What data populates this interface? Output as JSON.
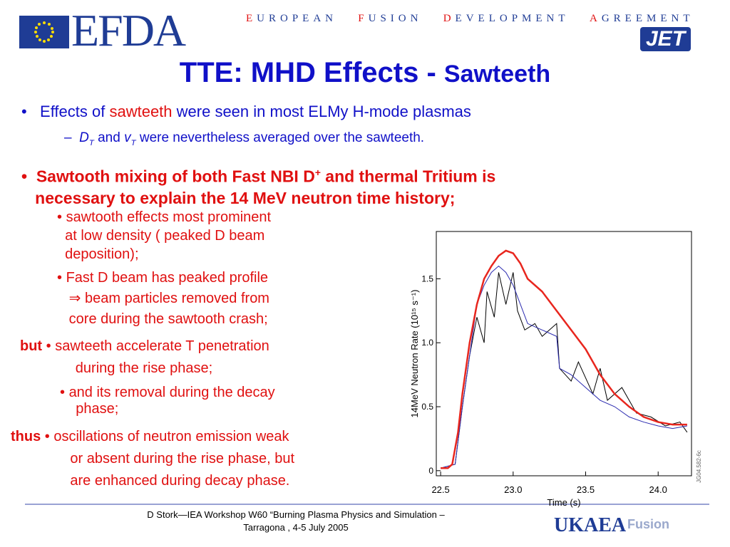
{
  "header": {
    "logo": "EFDA",
    "tagline": [
      "E",
      "UROPEAN",
      "F",
      "USION",
      "D",
      "EVELOPMENT",
      "A",
      "GREEMENT"
    ],
    "jet": "JET"
  },
  "title": {
    "main": "TTE: MHD Effects - ",
    "sub": "Sawteeth"
  },
  "bullets": {
    "b1": [
      "Effects of ",
      "sawteeth",
      " were seen in most ELMy H-mode plasmas"
    ],
    "b1sub": [
      "D",
      "T",
      " and ",
      "v",
      "T",
      " were nevertheless averaged over the sawteeth."
    ],
    "b2": [
      "Sawtooth mixing of both  Fast NBI D",
      "+",
      " and thermal Tritium is",
      "necessary to explain the 14 MeV neutron time history;"
    ],
    "s1": [
      "sawtooth effects most prominent",
      "at low density  ( peaked D beam",
      "deposition);"
    ],
    "s2": [
      "Fast D beam has peaked profile",
      "⇒ beam particles removed from",
      "core during the sawtooth crash;"
    ],
    "but": "but",
    "s3": [
      "sawteeth accelerate T penetration",
      "during the rise phase;"
    ],
    "s4": [
      "and its removal during the decay",
      "phase;"
    ],
    "thus": "thus",
    "s5": [
      "oscillations of neutron emission weak",
      "or absent during the rise phase, but",
      "are enhanced  during decay phase."
    ]
  },
  "figure": {
    "xlabel": "Time (s)",
    "ylabel": "14MeV Neutron Rate (10¹⁵ s⁻¹)",
    "side_label": "JG04.582-6c",
    "xlim": [
      22.47,
      24.23
    ],
    "ylim": [
      -0.04,
      1.87
    ],
    "xticks": [
      22.5,
      {
        "value": 23,
        "label": "23.0"
      },
      23.5,
      {
        "value": 24,
        "label": "24.0"
      }
    ],
    "yticks": [
      0,
      0.5,
      {
        "value": 1,
        "label": "1.0"
      },
      1.5
    ],
    "series": [
      {
        "color": "#000000",
        "x": [
          22.5,
          22.6,
          22.65,
          22.7,
          22.75,
          22.8,
          22.82,
          22.87,
          22.9,
          22.95,
          23.0,
          23.03,
          23.08,
          23.15,
          23.2,
          23.3,
          23.32,
          23.4,
          23.45,
          23.55,
          23.6,
          23.65,
          23.75,
          23.85,
          23.95,
          24.05,
          24.15,
          24.2
        ],
        "values": [
          0.02,
          0.05,
          0.5,
          0.9,
          1.2,
          1.0,
          1.4,
          1.2,
          1.55,
          1.3,
          1.55,
          1.25,
          1.1,
          1.15,
          1.05,
          1.15,
          0.8,
          0.7,
          0.85,
          0.6,
          0.8,
          0.55,
          0.65,
          0.45,
          0.42,
          0.35,
          0.38,
          0.3
        ]
      },
      {
        "color": "#2b2bb0",
        "x": [
          22.5,
          22.6,
          22.65,
          22.7,
          22.75,
          22.8,
          22.85,
          22.9,
          22.95,
          23.0,
          23.05,
          23.1,
          23.2,
          23.3,
          23.32,
          23.4,
          23.5,
          23.6,
          23.7,
          23.8,
          23.9,
          24.0,
          24.1,
          24.2
        ],
        "values": [
          0.02,
          0.05,
          0.5,
          0.9,
          1.3,
          1.45,
          1.55,
          1.6,
          1.55,
          1.45,
          1.3,
          1.15,
          1.1,
          1.05,
          0.8,
          0.75,
          0.65,
          0.55,
          0.5,
          0.42,
          0.38,
          0.35,
          0.33,
          0.35
        ]
      },
      {
        "color": "#e8261e",
        "x": [
          22.5,
          22.55,
          22.58,
          22.62,
          22.65,
          22.7,
          22.75,
          22.8,
          22.85,
          22.9,
          22.95,
          23.0,
          23.05,
          23.1,
          23.2,
          23.3,
          23.4,
          23.5,
          23.6,
          23.7,
          23.8,
          23.9,
          24.0,
          24.1,
          24.2
        ],
        "values": [
          0.02,
          0.02,
          0.05,
          0.3,
          0.6,
          1.0,
          1.3,
          1.5,
          1.6,
          1.68,
          1.72,
          1.7,
          1.62,
          1.5,
          1.4,
          1.25,
          1.1,
          0.95,
          0.75,
          0.6,
          0.5,
          0.42,
          0.38,
          0.36,
          0.36
        ]
      }
    ]
  },
  "footer": {
    "lines": [
      "D Stork—IEA Workshop W60 “Burning Plasma Physics and Simulation –",
      "Tarragona , 4-5 July 2005"
    ],
    "ukaea": "UKAEA",
    "fusion": "Fusion"
  }
}
